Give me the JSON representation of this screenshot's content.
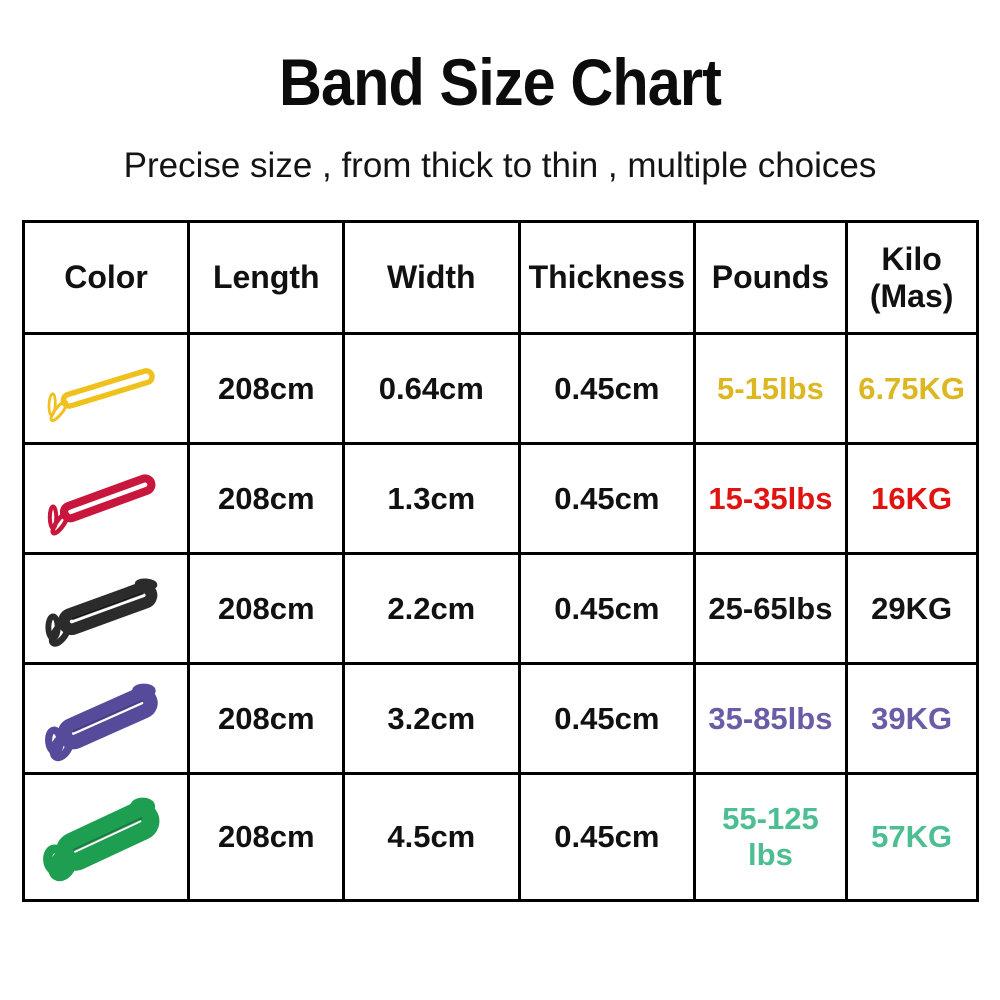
{
  "page": {
    "title": "Band Size Chart",
    "subtitle": "Precise size , from thick to thin , multiple choices"
  },
  "table": {
    "headers": [
      {
        "label": "Color"
      },
      {
        "label": "Length"
      },
      {
        "label": "Width"
      },
      {
        "label": "Thickness"
      },
      {
        "label": "Pounds"
      },
      {
        "label": "Kilo",
        "sublabel": "(Mas)"
      }
    ],
    "rows": [
      {
        "band": {
          "name": "yellow-band",
          "color_name": "yellow",
          "color": "#F0C11C",
          "dark": "#C79A08",
          "thickness": 6,
          "gap": 7,
          "angle": -17
        },
        "length": "208cm",
        "width": "0.64cm",
        "thickness": "0.45cm",
        "pounds": "5-15lbs",
        "kilo": "6.75KG",
        "accent": "#DDB722"
      },
      {
        "band": {
          "name": "red-band",
          "color_name": "red",
          "color": "#C9163C",
          "dark": "#8F0E2B",
          "thickness": 9,
          "gap": 5,
          "angle": -20
        },
        "length": "208cm",
        "width": "1.3cm",
        "thickness": "0.45cm",
        "pounds": "15-35lbs",
        "kilo": "16KG",
        "accent": "#E01310"
      },
      {
        "band": {
          "name": "black-band",
          "color_name": "black",
          "color": "#2B2B2B",
          "dark": "#000000",
          "thickness": 13,
          "gap": 4,
          "angle": -20
        },
        "length": "208cm",
        "width": "2.2cm",
        "thickness": "0.45cm",
        "pounds": "25-65lbs",
        "kilo": "29KG",
        "accent": "#141414"
      },
      {
        "band": {
          "name": "purple-band",
          "color_name": "purple",
          "color": "#564A9B",
          "dark": "#3E3279",
          "thickness": 16,
          "gap": 3,
          "angle": -24
        },
        "length": "208cm",
        "width": "3.2cm",
        "thickness": "0.45cm",
        "pounds": "35-85lbs",
        "kilo": "39KG",
        "accent": "#6C5BA7"
      },
      {
        "band": {
          "name": "green-band",
          "color_name": "green",
          "color": "#1E9E50",
          "dark": "#126F37",
          "thickness": 20,
          "gap": 3,
          "angle": -25
        },
        "length": "208cm",
        "width": "4.5cm",
        "thickness": "0.45cm",
        "pounds": "55-125 lbs",
        "kilo": "57KG",
        "accent": "#4CBE92"
      }
    ]
  },
  "chart_data": {
    "type": "table",
    "title": "Band Size Chart",
    "subtitle": "Precise size , from thick to thin , multiple choices",
    "columns": [
      "Color",
      "Length",
      "Width",
      "Thickness",
      "Pounds",
      "Kilo (Mas)"
    ],
    "rows": [
      [
        "yellow",
        "208cm",
        "0.64cm",
        "0.45cm",
        "5-15lbs",
        "6.75KG"
      ],
      [
        "red",
        "208cm",
        "1.3cm",
        "0.45cm",
        "15-35lbs",
        "16KG"
      ],
      [
        "black",
        "208cm",
        "2.2cm",
        "0.45cm",
        "25-65lbs",
        "29KG"
      ],
      [
        "purple",
        "208cm",
        "3.2cm",
        "0.45cm",
        "35-85lbs",
        "39KG"
      ],
      [
        "green",
        "208cm",
        "4.5cm",
        "0.45cm",
        "55-125 lbs",
        "57KG"
      ]
    ]
  }
}
